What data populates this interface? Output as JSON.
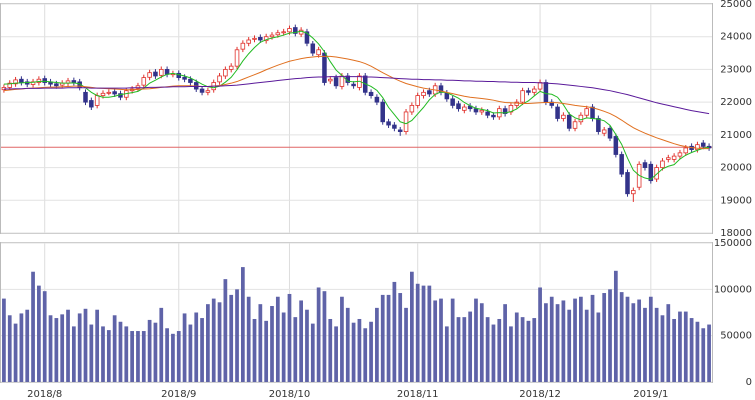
{
  "chart_data": [
    {
      "type": "candlestick",
      "categories": [
        null,
        null,
        null,
        null,
        null,
        null,
        null,
        "2018/8",
        null,
        null,
        null,
        null,
        null,
        null,
        null,
        null,
        null,
        null,
        null,
        null,
        null,
        null,
        null,
        null,
        null,
        null,
        null,
        null,
        null,
        null,
        "2018/9",
        null,
        null,
        null,
        null,
        null,
        null,
        null,
        null,
        null,
        null,
        null,
        null,
        null,
        null,
        null,
        null,
        null,
        null,
        "2018/10",
        null,
        null,
        null,
        null,
        null,
        null,
        null,
        null,
        null,
        null,
        null,
        null,
        null,
        null,
        null,
        null,
        null,
        null,
        null,
        null,
        null,
        "2018/11",
        null,
        null,
        null,
        null,
        null,
        null,
        null,
        null,
        null,
        null,
        null,
        null,
        null,
        null,
        null,
        null,
        null,
        null,
        null,
        null,
        "2018/12",
        null,
        null,
        null,
        null,
        null,
        null,
        null,
        null,
        null,
        null,
        null,
        null,
        null,
        null,
        null,
        null,
        null,
        null,
        "2019/1",
        null,
        null,
        null,
        null,
        null,
        null,
        null,
        null,
        null,
        null
      ],
      "open": [
        22380,
        22450,
        22560,
        22700,
        22620,
        22540,
        22600,
        22720,
        22620,
        22560,
        22520,
        22580,
        22660,
        22620,
        22300,
        22050,
        21900,
        22200,
        22300,
        22320,
        22260,
        22150,
        22350,
        22420,
        22520,
        22760,
        22920,
        22820,
        23000,
        22850,
        22880,
        22760,
        22700,
        22600,
        22400,
        22300,
        22380,
        22620,
        22800,
        23000,
        23100,
        23620,
        23800,
        23920,
        23980,
        23880,
        24000,
        24060,
        24120,
        24150,
        24280,
        24080,
        24150,
        23780,
        23450,
        23500,
        22650,
        22750,
        22480,
        22800,
        22550,
        22450,
        22800,
        22300,
        22150,
        22000,
        21400,
        21300,
        21150,
        21100,
        21700,
        21900,
        22200,
        22350,
        22250,
        22500,
        22280,
        22100,
        21950,
        21750,
        21880,
        21800,
        21700,
        21700,
        21600,
        21550,
        21800,
        21700,
        21900,
        22000,
        22350,
        22300,
        22400,
        22600,
        22000,
        21850,
        21500,
        21600,
        21200,
        21400,
        21600,
        21850,
        21500,
        21050,
        21200,
        20950,
        20400,
        19850,
        19200,
        19400,
        20150,
        20100,
        19650,
        20000,
        20250,
        20250,
        20350,
        20450,
        20650,
        20550,
        20750,
        20650
      ],
      "high": [
        22540,
        22670,
        22770,
        22790,
        22710,
        22710,
        22790,
        22810,
        22710,
        22650,
        22670,
        22740,
        22750,
        22710,
        22390,
        22140,
        22290,
        22360,
        22390,
        22410,
        22350,
        22440,
        22490,
        22590,
        22840,
        22990,
        23010,
        23090,
        23090,
        22960,
        22970,
        22850,
        22790,
        22690,
        22490,
        22440,
        22690,
        22890,
        23090,
        23190,
        23690,
        23890,
        23990,
        24040,
        24070,
        24090,
        24140,
        24210,
        24240,
        24340,
        24370,
        24290,
        24240,
        23870,
        23690,
        23590,
        22790,
        22840,
        22890,
        22890,
        22640,
        22890,
        22890,
        22390,
        22240,
        22090,
        21490,
        21390,
        21240,
        21790,
        21990,
        22290,
        22390,
        22440,
        22590,
        22590,
        22370,
        22190,
        22040,
        21940,
        21970,
        21890,
        21840,
        21790,
        21690,
        21890,
        21890,
        21990,
        22090,
        22440,
        22440,
        22490,
        22690,
        22690,
        22090,
        21940,
        21690,
        21690,
        21490,
        21690,
        21890,
        21940,
        21590,
        21240,
        21290,
        21040,
        20490,
        19940,
        19390,
        20190,
        20240,
        20190,
        20090,
        20290,
        20390,
        20440,
        20540,
        20690,
        20740,
        20790,
        20840,
        20740
      ],
      "low": [
        22290,
        22360,
        22470,
        22510,
        22460,
        22450,
        22510,
        22510,
        22460,
        22410,
        22430,
        22490,
        22510,
        22360,
        21910,
        21760,
        21810,
        22110,
        22210,
        22160,
        22060,
        22060,
        22260,
        22330,
        22430,
        22670,
        22710,
        22730,
        22760,
        22760,
        22660,
        22610,
        22510,
        22310,
        22210,
        22210,
        22290,
        22530,
        22710,
        22910,
        23010,
        23530,
        23710,
        23830,
        23810,
        23790,
        23910,
        23970,
        24030,
        24060,
        24010,
        23990,
        23710,
        23410,
        23360,
        22510,
        22560,
        22410,
        22390,
        22510,
        22410,
        22360,
        22210,
        22110,
        21910,
        21310,
        21210,
        21110,
        20970,
        21010,
        21610,
        21810,
        22110,
        22160,
        22160,
        22210,
        22010,
        21810,
        21710,
        21660,
        21710,
        21610,
        21610,
        21510,
        21460,
        21460,
        21560,
        21610,
        21810,
        21910,
        22210,
        22210,
        22310,
        21910,
        21810,
        21410,
        21410,
        21110,
        21110,
        21310,
        21510,
        21410,
        21010,
        20960,
        20810,
        20310,
        19710,
        19110,
        18950,
        19310,
        19910,
        19510,
        19560,
        19910,
        20160,
        20160,
        20260,
        20360,
        20460,
        20460,
        20560,
        20510
      ],
      "close": [
        22450,
        22580,
        22680,
        22600,
        22550,
        22620,
        22700,
        22600,
        22550,
        22500,
        22580,
        22650,
        22600,
        22450,
        22000,
        21850,
        22200,
        22270,
        22300,
        22250,
        22150,
        22350,
        22400,
        22500,
        22750,
        22900,
        22800,
        23000,
        22850,
        22870,
        22750,
        22700,
        22600,
        22400,
        22300,
        22350,
        22600,
        22800,
        23000,
        23100,
        23600,
        23800,
        23900,
        23950,
        23900,
        24000,
        24050,
        24120,
        24150,
        24250,
        24100,
        24200,
        23800,
        23500,
        23600,
        22600,
        22700,
        22500,
        22800,
        22600,
        22500,
        22800,
        22300,
        22200,
        22000,
        21400,
        21300,
        21200,
        21100,
        21700,
        21900,
        22200,
        22300,
        22250,
        22500,
        22300,
        22100,
        21900,
        21800,
        21850,
        21800,
        21700,
        21750,
        21600,
        21550,
        21800,
        21650,
        21900,
        22000,
        22350,
        22300,
        22400,
        22600,
        22000,
        21900,
        21500,
        21600,
        21200,
        21400,
        21600,
        21800,
        21500,
        21100,
        21150,
        20900,
        20400,
        19800,
        19200,
        19300,
        20100,
        20000,
        19600,
        20000,
        20200,
        20300,
        20350,
        20450,
        20600,
        20550,
        20700,
        20650,
        20600
      ],
      "up_color": "#e0312c",
      "down_color": "#33338a",
      "series": [
        {
          "color": "#22bb22",
          "values": [
            22550,
            22560,
            22580,
            22590,
            22600,
            22610,
            22630,
            22640,
            22620,
            22600,
            22580,
            22580,
            22590,
            22560,
            22440,
            22300,
            22200,
            22150,
            22150,
            22180,
            22230,
            22260,
            22290,
            22330,
            22430,
            22580,
            22670,
            22770,
            22850,
            22880,
            22840,
            22800,
            22740,
            22650,
            22550,
            22470,
            22440,
            22490,
            22610,
            22760,
            22990,
            23260,
            23480,
            23670,
            23830,
            23910,
            23960,
            24000,
            24050,
            24110,
            24130,
            24170,
            24110,
            23960,
            23780,
            23540,
            23240,
            22980,
            22820,
            22640,
            22620,
            22640,
            22560,
            22480,
            22360,
            22140,
            21840,
            21620,
            21400,
            21340,
            21440,
            21640,
            21840,
            22070,
            22240,
            22310,
            22290,
            22210,
            22120,
            21990,
            21890,
            21810,
            21780,
            21740,
            21670,
            21680,
            21670,
            21710,
            21790,
            21940,
            22040,
            22190,
            22330,
            22260,
            22240,
            22150,
            21920,
            21640,
            21520,
            21460,
            21520,
            21500,
            21480,
            21430,
            21290,
            21010,
            20710,
            20290,
            19920,
            19760,
            19680,
            19640,
            19800,
            19960,
            20040,
            20090,
            20260,
            20380,
            20460,
            20530,
            20590,
            20620
          ]
        },
        {
          "color": "#e07020",
          "values": [
            22350,
            22370,
            22390,
            22400,
            22420,
            22430,
            22440,
            22450,
            22460,
            22460,
            22470,
            22480,
            22490,
            22490,
            22470,
            22450,
            22430,
            22420,
            22410,
            22400,
            22390,
            22380,
            22380,
            22390,
            22400,
            22410,
            22430,
            22450,
            22470,
            22490,
            22500,
            22500,
            22500,
            22490,
            22480,
            22480,
            22490,
            22510,
            22540,
            22580,
            22630,
            22700,
            22770,
            22840,
            22910,
            22990,
            23060,
            23130,
            23190,
            23250,
            23290,
            23330,
            23360,
            23380,
            23400,
            23400,
            23400,
            23380,
            23350,
            23320,
            23280,
            23240,
            23180,
            23100,
            23000,
            22900,
            22810,
            22720,
            22640,
            22570,
            22520,
            22470,
            22430,
            22400,
            22370,
            22340,
            22300,
            22260,
            22220,
            22180,
            22150,
            22130,
            22110,
            22090,
            22060,
            22020,
            21990,
            21980,
            21970,
            21960,
            21960,
            21970,
            21980,
            21990,
            21990,
            21980,
            21960,
            21930,
            21900,
            21880,
            21860,
            21830,
            21780,
            21720,
            21650,
            21560,
            21450,
            21330,
            21220,
            21130,
            21050,
            20980,
            20910,
            20850,
            20790,
            20730,
            20680,
            20640,
            20610,
            20590,
            20580,
            20580
          ]
        },
        {
          "color": "#5a1a9a",
          "values": [
            22400,
            22400,
            22410,
            22410,
            22420,
            22420,
            22420,
            22430,
            22430,
            22430,
            22430,
            22440,
            22440,
            22440,
            22440,
            22430,
            22430,
            22430,
            22430,
            22430,
            22430,
            22430,
            22440,
            22440,
            22440,
            22450,
            22450,
            22460,
            22460,
            22470,
            22470,
            22470,
            22480,
            22480,
            22480,
            22480,
            22490,
            22490,
            22500,
            22510,
            22520,
            22540,
            22560,
            22580,
            22600,
            22620,
            22640,
            22660,
            22680,
            22700,
            22720,
            22730,
            22750,
            22760,
            22770,
            22770,
            22780,
            22780,
            22780,
            22780,
            22780,
            22780,
            22770,
            22770,
            22760,
            22750,
            22740,
            22730,
            22720,
            22710,
            22700,
            22700,
            22690,
            22690,
            22680,
            22680,
            22670,
            22670,
            22660,
            22650,
            22650,
            22640,
            22640,
            22630,
            22630,
            22620,
            22620,
            22610,
            22610,
            22600,
            22600,
            22600,
            22590,
            22580,
            22570,
            22560,
            22540,
            22520,
            22500,
            22480,
            22460,
            22440,
            22410,
            22380,
            22350,
            22310,
            22270,
            22230,
            22180,
            22130,
            22080,
            22030,
            21980,
            21940,
            21900,
            21860,
            21820,
            21780,
            21740,
            21710,
            21680,
            21650
          ]
        }
      ],
      "hline": 20620,
      "hline_color": "#e06666",
      "ylim": [
        18000,
        25000
      ],
      "yticks": [
        18000,
        19000,
        20000,
        21000,
        22000,
        23000,
        24000,
        25000
      ],
      "grid": true
    },
    {
      "type": "bar",
      "values": [
        90000,
        72000,
        63000,
        74000,
        78000,
        119000,
        104000,
        98000,
        72000,
        69000,
        73000,
        78000,
        60000,
        74000,
        79000,
        62000,
        78000,
        60000,
        56000,
        72000,
        65000,
        60000,
        55000,
        55000,
        55000,
        67000,
        64000,
        80000,
        58000,
        52000,
        55000,
        74000,
        62000,
        75000,
        69000,
        84000,
        90000,
        86000,
        111000,
        94000,
        100000,
        124000,
        92000,
        68000,
        84000,
        66000,
        82000,
        92000,
        75000,
        95000,
        70000,
        88000,
        78000,
        63000,
        102000,
        98000,
        68000,
        60000,
        92000,
        80000,
        64000,
        68000,
        58000,
        65000,
        80000,
        94000,
        94000,
        108000,
        96000,
        80000,
        119000,
        106000,
        104000,
        104000,
        88000,
        90000,
        60000,
        90000,
        70000,
        70000,
        76000,
        90000,
        85000,
        70000,
        62000,
        68000,
        84000,
        60000,
        75000,
        70000,
        66000,
        69000,
        102000,
        85000,
        92000,
        84000,
        88000,
        78000,
        90000,
        92000,
        78000,
        94000,
        75000,
        96000,
        100000,
        120000,
        97000,
        92000,
        85000,
        89000,
        80000,
        92000,
        80000,
        72000,
        84000,
        68000,
        76000,
        76000,
        69000,
        65000,
        58000,
        62000
      ],
      "color": "#5f63a8",
      "ylim": [
        0,
        150000
      ],
      "yticks": [
        0,
        50000,
        100000,
        150000
      ],
      "grid": true
    }
  ]
}
